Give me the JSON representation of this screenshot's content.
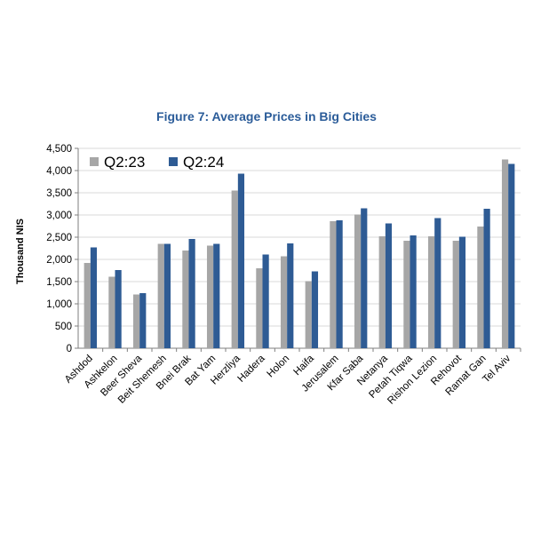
{
  "chart_data": {
    "type": "bar",
    "title": "Figure 7: Average Prices in Big Cities",
    "xlabel": "",
    "ylabel": "Thousand NIS",
    "ylim": [
      0,
      4500
    ],
    "yticks": [
      0,
      500,
      1000,
      1500,
      2000,
      2500,
      3000,
      3500,
      4000,
      4500
    ],
    "ytick_labels": [
      "0",
      "500",
      "1,000",
      "1,500",
      "2,000",
      "2,500",
      "3,000",
      "3,500",
      "4,000",
      "4,500"
    ],
    "grid": true,
    "legend_position": "top-left",
    "categories": [
      "Ashdod",
      "Ashkelon",
      "Beer Sheva",
      "Beit Shemesh",
      "Bnei Brak",
      "Bat Yam",
      "Herzliya",
      "Hadera",
      "Holon",
      "Haifa",
      "Jerusalem",
      "Kfar Saba",
      "Netanya",
      "Petah Tiqwa",
      "Rishon Lezion",
      "Rehovot",
      "Ramat Gan",
      "Tel Aviv"
    ],
    "series": [
      {
        "name": "Q2:23",
        "color": "#a6a6a6",
        "values": [
          1920,
          1610,
          1210,
          2350,
          2200,
          2310,
          3550,
          1800,
          2070,
          1510,
          2860,
          3010,
          2520,
          2420,
          2520,
          2420,
          2740,
          4250
        ]
      },
      {
        "name": "Q2:24",
        "color": "#2e5b94",
        "values": [
          2270,
          1760,
          1240,
          2350,
          2460,
          2350,
          3930,
          2110,
          2360,
          1730,
          2880,
          3150,
          2810,
          2540,
          2930,
          2510,
          3140,
          4150
        ]
      }
    ]
  }
}
